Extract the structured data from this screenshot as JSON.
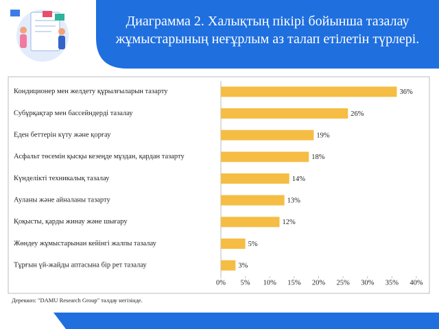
{
  "chart_data": {
    "type": "bar",
    "orientation": "horizontal",
    "title": "Диаграмма 2. Халықтың пікірі бойынша тазалау жұмыстарының неғұрлым аз талап етілетін түрлері.",
    "categories": [
      "Кондиционер мен желдету құрылғыларын тазарту",
      "Субұрқақтар мен бассейндерді тазалау",
      "Еден беттерін күту және қорғау",
      "Асфальт төсемін қысқы кезеңде мұздан, қардан тазарту",
      "Күнделікті техникалық тазалау",
      "Ауланы және айналаны тазарту",
      "Қоқысты, қарды жинау және шығару",
      "Жөндеу жұмыстарынан кейінгі жалпы тазалау",
      "Тұрғын үй-жайды аптасына бір рет тазалау"
    ],
    "values": [
      36,
      26,
      19,
      18,
      14,
      13,
      12,
      5,
      3
    ],
    "value_labels": [
      "36%",
      "26%",
      "19%",
      "18%",
      "14%",
      "13%",
      "12%",
      "5%",
      "3%"
    ],
    "color": "#f5bd44",
    "xlim": [
      0,
      40
    ],
    "xticks": [
      {
        "value": 0,
        "label": "0%"
      },
      {
        "value": 5,
        "label": "5%"
      },
      {
        "value": 10,
        "label": "10%"
      },
      {
        "value": 15,
        "label": "15%"
      },
      {
        "value": 20,
        "label": "20%"
      },
      {
        "value": 25,
        "label": "25%"
      },
      {
        "value": 30,
        "label": "30%"
      },
      {
        "value": 35,
        "label": "35%"
      },
      {
        "value": 40,
        "label": "40%"
      }
    ],
    "grid": false,
    "note": "Дереккөз: \"DAMU Research Group\" талдау негізінде."
  }
}
